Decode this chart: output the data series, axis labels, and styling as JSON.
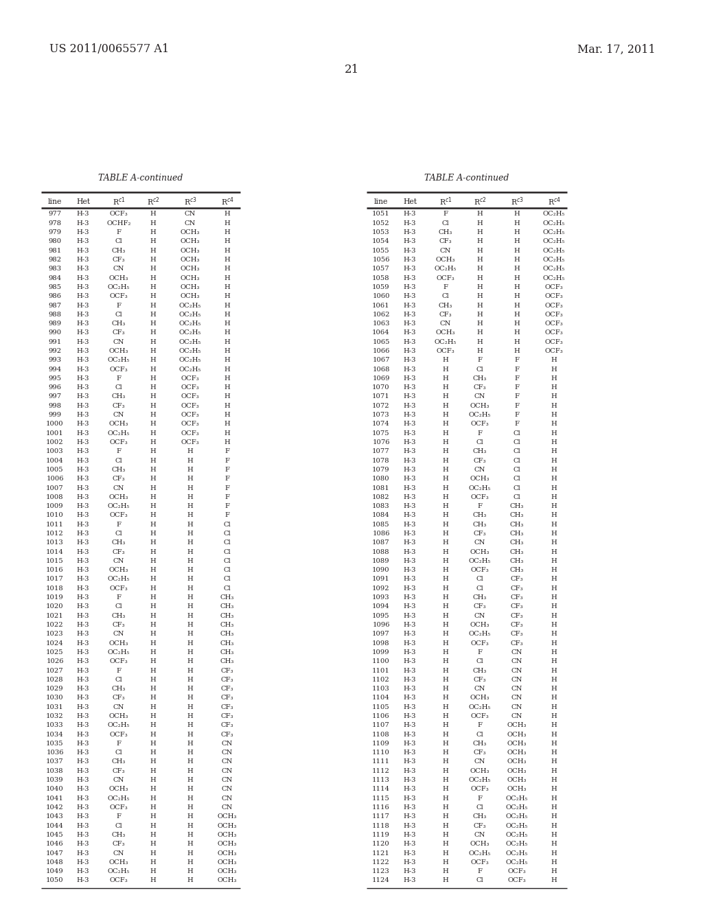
{
  "patent_number": "US 2011/0065577 A1",
  "date": "Mar. 17, 2011",
  "page_number": "21",
  "table_title": "TABLE A-continued",
  "left_table": [
    [
      "977",
      "H-3",
      "OCF₃",
      "H",
      "CN",
      "H"
    ],
    [
      "978",
      "H-3",
      "OCHF₂",
      "H",
      "CN",
      "H"
    ],
    [
      "979",
      "H-3",
      "F",
      "H",
      "OCH₃",
      "H"
    ],
    [
      "980",
      "H-3",
      "Cl",
      "H",
      "OCH₃",
      "H"
    ],
    [
      "981",
      "H-3",
      "CH₃",
      "H",
      "OCH₃",
      "H"
    ],
    [
      "982",
      "H-3",
      "CF₃",
      "H",
      "OCH₃",
      "H"
    ],
    [
      "983",
      "H-3",
      "CN",
      "H",
      "OCH₃",
      "H"
    ],
    [
      "984",
      "H-3",
      "OCH₃",
      "H",
      "OCH₃",
      "H"
    ],
    [
      "985",
      "H-3",
      "OC₂H₅",
      "H",
      "OCH₃",
      "H"
    ],
    [
      "986",
      "H-3",
      "OCF₃",
      "H",
      "OCH₃",
      "H"
    ],
    [
      "987",
      "H-3",
      "F",
      "H",
      "OC₂H₅",
      "H"
    ],
    [
      "988",
      "H-3",
      "Cl",
      "H",
      "OC₂H₅",
      "H"
    ],
    [
      "989",
      "H-3",
      "CH₃",
      "H",
      "OC₂H₅",
      "H"
    ],
    [
      "990",
      "H-3",
      "CF₃",
      "H",
      "OC₂H₅",
      "H"
    ],
    [
      "991",
      "H-3",
      "CN",
      "H",
      "OC₂H₅",
      "H"
    ],
    [
      "992",
      "H-3",
      "OCH₃",
      "H",
      "OC₂H₅",
      "H"
    ],
    [
      "993",
      "H-3",
      "OC₂H₅",
      "H",
      "OC₂H₅",
      "H"
    ],
    [
      "994",
      "H-3",
      "OCF₃",
      "H",
      "OC₂H₅",
      "H"
    ],
    [
      "995",
      "H-3",
      "F",
      "H",
      "OCF₃",
      "H"
    ],
    [
      "996",
      "H-3",
      "Cl",
      "H",
      "OCF₃",
      "H"
    ],
    [
      "997",
      "H-3",
      "CH₃",
      "H",
      "OCF₃",
      "H"
    ],
    [
      "998",
      "H-3",
      "CF₃",
      "H",
      "OCF₃",
      "H"
    ],
    [
      "999",
      "H-3",
      "CN",
      "H",
      "OCF₃",
      "H"
    ],
    [
      "1000",
      "H-3",
      "OCH₃",
      "H",
      "OCF₃",
      "H"
    ],
    [
      "1001",
      "H-3",
      "OC₂H₅",
      "H",
      "OCF₃",
      "H"
    ],
    [
      "1002",
      "H-3",
      "OCF₃",
      "H",
      "OCF₃",
      "H"
    ],
    [
      "1003",
      "H-3",
      "F",
      "H",
      "H",
      "F"
    ],
    [
      "1004",
      "H-3",
      "Cl",
      "H",
      "H",
      "F"
    ],
    [
      "1005",
      "H-3",
      "CH₃",
      "H",
      "H",
      "F"
    ],
    [
      "1006",
      "H-3",
      "CF₃",
      "H",
      "H",
      "F"
    ],
    [
      "1007",
      "H-3",
      "CN",
      "H",
      "H",
      "F"
    ],
    [
      "1008",
      "H-3",
      "OCH₃",
      "H",
      "H",
      "F"
    ],
    [
      "1009",
      "H-3",
      "OC₂H₅",
      "H",
      "H",
      "F"
    ],
    [
      "1010",
      "H-3",
      "OCF₃",
      "H",
      "H",
      "F"
    ],
    [
      "1011",
      "H-3",
      "F",
      "H",
      "H",
      "Cl"
    ],
    [
      "1012",
      "H-3",
      "Cl",
      "H",
      "H",
      "Cl"
    ],
    [
      "1013",
      "H-3",
      "CH₃",
      "H",
      "H",
      "Cl"
    ],
    [
      "1014",
      "H-3",
      "CF₃",
      "H",
      "H",
      "Cl"
    ],
    [
      "1015",
      "H-3",
      "CN",
      "H",
      "H",
      "Cl"
    ],
    [
      "1016",
      "H-3",
      "OCH₃",
      "H",
      "H",
      "Cl"
    ],
    [
      "1017",
      "H-3",
      "OC₂H₅",
      "H",
      "H",
      "Cl"
    ],
    [
      "1018",
      "H-3",
      "OCF₃",
      "H",
      "H",
      "Cl"
    ],
    [
      "1019",
      "H-3",
      "F",
      "H",
      "H",
      "CH₃"
    ],
    [
      "1020",
      "H-3",
      "Cl",
      "H",
      "H",
      "CH₃"
    ],
    [
      "1021",
      "H-3",
      "CH₃",
      "H",
      "H",
      "CH₃"
    ],
    [
      "1022",
      "H-3",
      "CF₃",
      "H",
      "H",
      "CH₃"
    ],
    [
      "1023",
      "H-3",
      "CN",
      "H",
      "H",
      "CH₃"
    ],
    [
      "1024",
      "H-3",
      "OCH₃",
      "H",
      "H",
      "CH₃"
    ],
    [
      "1025",
      "H-3",
      "OC₂H₅",
      "H",
      "H",
      "CH₃"
    ],
    [
      "1026",
      "H-3",
      "OCF₃",
      "H",
      "H",
      "CH₃"
    ],
    [
      "1027",
      "H-3",
      "F",
      "H",
      "H",
      "CF₃"
    ],
    [
      "1028",
      "H-3",
      "Cl",
      "H",
      "H",
      "CF₃"
    ],
    [
      "1029",
      "H-3",
      "CH₃",
      "H",
      "H",
      "CF₃"
    ],
    [
      "1030",
      "H-3",
      "CF₃",
      "H",
      "H",
      "CF₃"
    ],
    [
      "1031",
      "H-3",
      "CN",
      "H",
      "H",
      "CF₃"
    ],
    [
      "1032",
      "H-3",
      "OCH₃",
      "H",
      "H",
      "CF₃"
    ],
    [
      "1033",
      "H-3",
      "OC₂H₅",
      "H",
      "H",
      "CF₃"
    ],
    [
      "1034",
      "H-3",
      "OCF₃",
      "H",
      "H",
      "CF₃"
    ],
    [
      "1035",
      "H-3",
      "F",
      "H",
      "H",
      "CN"
    ],
    [
      "1036",
      "H-3",
      "Cl",
      "H",
      "H",
      "CN"
    ],
    [
      "1037",
      "H-3",
      "CH₃",
      "H",
      "H",
      "CN"
    ],
    [
      "1038",
      "H-3",
      "CF₃",
      "H",
      "H",
      "CN"
    ],
    [
      "1039",
      "H-3",
      "CN",
      "H",
      "H",
      "CN"
    ],
    [
      "1040",
      "H-3",
      "OCH₃",
      "H",
      "H",
      "CN"
    ],
    [
      "1041",
      "H-3",
      "OC₂H₅",
      "H",
      "H",
      "CN"
    ],
    [
      "1042",
      "H-3",
      "OCF₃",
      "H",
      "H",
      "CN"
    ],
    [
      "1043",
      "H-3",
      "F",
      "H",
      "H",
      "OCH₃"
    ],
    [
      "1044",
      "H-3",
      "Cl",
      "H",
      "H",
      "OCH₃"
    ],
    [
      "1045",
      "H-3",
      "CH₃",
      "H",
      "H",
      "OCH₃"
    ],
    [
      "1046",
      "H-3",
      "CF₃",
      "H",
      "H",
      "OCH₃"
    ],
    [
      "1047",
      "H-3",
      "CN",
      "H",
      "H",
      "OCH₃"
    ],
    [
      "1048",
      "H-3",
      "OCH₃",
      "H",
      "H",
      "OCH₃"
    ],
    [
      "1049",
      "H-3",
      "OC₂H₅",
      "H",
      "H",
      "OCH₃"
    ],
    [
      "1050",
      "H-3",
      "OCF₃",
      "H",
      "H",
      "OCH₃"
    ]
  ],
  "right_table": [
    [
      "1051",
      "H-3",
      "F",
      "H",
      "H",
      "OC₂H₅"
    ],
    [
      "1052",
      "H-3",
      "Cl",
      "H",
      "H",
      "OC₂H₅"
    ],
    [
      "1053",
      "H-3",
      "CH₃",
      "H",
      "H",
      "OC₂H₅"
    ],
    [
      "1054",
      "H-3",
      "CF₃",
      "H",
      "H",
      "OC₂H₅"
    ],
    [
      "1055",
      "H-3",
      "CN",
      "H",
      "H",
      "OC₂H₅"
    ],
    [
      "1056",
      "H-3",
      "OCH₃",
      "H",
      "H",
      "OC₂H₅"
    ],
    [
      "1057",
      "H-3",
      "OC₂H₅",
      "H",
      "H",
      "OC₂H₅"
    ],
    [
      "1058",
      "H-3",
      "OCF₃",
      "H",
      "H",
      "OC₂H₅"
    ],
    [
      "1059",
      "H-3",
      "F",
      "H",
      "H",
      "OCF₃"
    ],
    [
      "1060",
      "H-3",
      "Cl",
      "H",
      "H",
      "OCF₃"
    ],
    [
      "1061",
      "H-3",
      "CH₃",
      "H",
      "H",
      "OCF₃"
    ],
    [
      "1062",
      "H-3",
      "CF₃",
      "H",
      "H",
      "OCF₃"
    ],
    [
      "1063",
      "H-3",
      "CN",
      "H",
      "H",
      "OCF₃"
    ],
    [
      "1064",
      "H-3",
      "OCH₃",
      "H",
      "H",
      "OCF₃"
    ],
    [
      "1065",
      "H-3",
      "OC₂H₅",
      "H",
      "H",
      "OCF₃"
    ],
    [
      "1066",
      "H-3",
      "OCF₃",
      "H",
      "H",
      "OCF₃"
    ],
    [
      "1067",
      "H-3",
      "H",
      "F",
      "F",
      "H"
    ],
    [
      "1068",
      "H-3",
      "H",
      "Cl",
      "F",
      "H"
    ],
    [
      "1069",
      "H-3",
      "H",
      "CH₃",
      "F",
      "H"
    ],
    [
      "1070",
      "H-3",
      "H",
      "CF₃",
      "F",
      "H"
    ],
    [
      "1071",
      "H-3",
      "H",
      "CN",
      "F",
      "H"
    ],
    [
      "1072",
      "H-3",
      "H",
      "OCH₃",
      "F",
      "H"
    ],
    [
      "1073",
      "H-3",
      "H",
      "OC₂H₅",
      "F",
      "H"
    ],
    [
      "1074",
      "H-3",
      "H",
      "OCF₃",
      "F",
      "H"
    ],
    [
      "1075",
      "H-3",
      "H",
      "F",
      "Cl",
      "H"
    ],
    [
      "1076",
      "H-3",
      "H",
      "Cl",
      "Cl",
      "H"
    ],
    [
      "1077",
      "H-3",
      "H",
      "CH₃",
      "Cl",
      "H"
    ],
    [
      "1078",
      "H-3",
      "H",
      "CF₃",
      "Cl",
      "H"
    ],
    [
      "1079",
      "H-3",
      "H",
      "CN",
      "Cl",
      "H"
    ],
    [
      "1080",
      "H-3",
      "H",
      "OCH₃",
      "Cl",
      "H"
    ],
    [
      "1081",
      "H-3",
      "H",
      "OC₂H₅",
      "Cl",
      "H"
    ],
    [
      "1082",
      "H-3",
      "H",
      "OCF₃",
      "Cl",
      "H"
    ],
    [
      "1083",
      "H-3",
      "H",
      "F",
      "CH₃",
      "H"
    ],
    [
      "1084",
      "H-3",
      "H",
      "CH₃",
      "CH₃",
      "H"
    ],
    [
      "1085",
      "H-3",
      "H",
      "CH₃",
      "CH₃",
      "H"
    ],
    [
      "1086",
      "H-3",
      "H",
      "CF₃",
      "CH₃",
      "H"
    ],
    [
      "1087",
      "H-3",
      "H",
      "CN",
      "CH₃",
      "H"
    ],
    [
      "1088",
      "H-3",
      "H",
      "OCH₃",
      "CH₃",
      "H"
    ],
    [
      "1089",
      "H-3",
      "H",
      "OC₂H₅",
      "CH₃",
      "H"
    ],
    [
      "1090",
      "H-3",
      "H",
      "OCF₃",
      "CH₃",
      "H"
    ],
    [
      "1091",
      "H-3",
      "H",
      "Cl",
      "CF₃",
      "H"
    ],
    [
      "1092",
      "H-3",
      "H",
      "Cl",
      "CF₃",
      "H"
    ],
    [
      "1093",
      "H-3",
      "H",
      "CH₃",
      "CF₃",
      "H"
    ],
    [
      "1094",
      "H-3",
      "H",
      "CF₃",
      "CF₃",
      "H"
    ],
    [
      "1095",
      "H-3",
      "H",
      "CN",
      "CF₃",
      "H"
    ],
    [
      "1096",
      "H-3",
      "H",
      "OCH₃",
      "CF₃",
      "H"
    ],
    [
      "1097",
      "H-3",
      "H",
      "OC₂H₅",
      "CF₃",
      "H"
    ],
    [
      "1098",
      "H-3",
      "H",
      "OCF₃",
      "CF₃",
      "H"
    ],
    [
      "1099",
      "H-3",
      "H",
      "F",
      "CN",
      "H"
    ],
    [
      "1100",
      "H-3",
      "H",
      "Cl",
      "CN",
      "H"
    ],
    [
      "1101",
      "H-3",
      "H",
      "CH₃",
      "CN",
      "H"
    ],
    [
      "1102",
      "H-3",
      "H",
      "CF₃",
      "CN",
      "H"
    ],
    [
      "1103",
      "H-3",
      "H",
      "CN",
      "CN",
      "H"
    ],
    [
      "1104",
      "H-3",
      "H",
      "OCH₃",
      "CN",
      "H"
    ],
    [
      "1105",
      "H-3",
      "H",
      "OC₂H₅",
      "CN",
      "H"
    ],
    [
      "1106",
      "H-3",
      "H",
      "OCF₃",
      "CN",
      "H"
    ],
    [
      "1107",
      "H-3",
      "H",
      "F",
      "OCH₃",
      "H"
    ],
    [
      "1108",
      "H-3",
      "H",
      "Cl",
      "OCH₃",
      "H"
    ],
    [
      "1109",
      "H-3",
      "H",
      "CH₃",
      "OCH₃",
      "H"
    ],
    [
      "1110",
      "H-3",
      "H",
      "CF₃",
      "OCH₃",
      "H"
    ],
    [
      "1111",
      "H-3",
      "H",
      "CN",
      "OCH₃",
      "H"
    ],
    [
      "1112",
      "H-3",
      "H",
      "OCH₃",
      "OCH₃",
      "H"
    ],
    [
      "1113",
      "H-3",
      "H",
      "OC₂H₅",
      "OCH₃",
      "H"
    ],
    [
      "1114",
      "H-3",
      "H",
      "OCF₃",
      "OCH₃",
      "H"
    ],
    [
      "1115",
      "H-3",
      "H",
      "F",
      "OC₂H₅",
      "H"
    ],
    [
      "1116",
      "H-3",
      "H",
      "Cl",
      "OC₂H₅",
      "H"
    ],
    [
      "1117",
      "H-3",
      "H",
      "CH₃",
      "OC₂H₅",
      "H"
    ],
    [
      "1118",
      "H-3",
      "H",
      "CF₃",
      "OC₂H₅",
      "H"
    ],
    [
      "1119",
      "H-3",
      "H",
      "CN",
      "OC₂H₅",
      "H"
    ],
    [
      "1120",
      "H-3",
      "H",
      "OCH₃",
      "OC₂H₅",
      "H"
    ],
    [
      "1121",
      "H-3",
      "H",
      "OC₂H₅",
      "OC₂H₅",
      "H"
    ],
    [
      "1122",
      "H-3",
      "H",
      "OCF₃",
      "OC₂H₅",
      "H"
    ],
    [
      "1123",
      "H-3",
      "H",
      "F",
      "OCF₃",
      "H"
    ],
    [
      "1124",
      "H-3",
      "H",
      "Cl",
      "OCF₃",
      "H"
    ]
  ],
  "bg_color": "#ffffff",
  "text_color": "#231f20",
  "font_size": 7.2,
  "header_font_size": 7.8,
  "patent_font_size": 11.5,
  "date_font_size": 11.5,
  "page_font_size": 12.0
}
